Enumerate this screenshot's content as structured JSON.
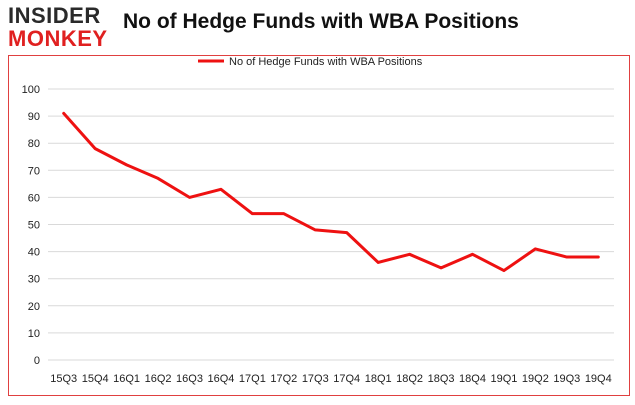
{
  "logo": {
    "line1": "INSIDER",
    "line2": "MONKEY"
  },
  "colors": {
    "series": "#ee1111",
    "grid": "#d9d9d9",
    "border": "#e04040"
  },
  "chart_data": {
    "type": "line",
    "title": "No of Hedge Funds with WBA Positions",
    "xlabel": "",
    "ylabel": "",
    "ylim": [
      0,
      100
    ],
    "yticks": [
      0,
      10,
      20,
      30,
      40,
      50,
      60,
      70,
      80,
      90,
      100
    ],
    "grid": true,
    "legend": "top-center",
    "categories": [
      "15Q3",
      "15Q4",
      "16Q1",
      "16Q2",
      "16Q3",
      "16Q4",
      "17Q1",
      "17Q2",
      "17Q3",
      "17Q4",
      "18Q1",
      "18Q2",
      "18Q3",
      "18Q4",
      "19Q1",
      "19Q2",
      "19Q3",
      "19Q4"
    ],
    "series": [
      {
        "name": "No of Hedge Funds with WBA Positions",
        "values": [
          91,
          78,
          72,
          67,
          60,
          63,
          54,
          54,
          48,
          47,
          36,
          39,
          34,
          39,
          33,
          41,
          38,
          38
        ]
      }
    ]
  }
}
